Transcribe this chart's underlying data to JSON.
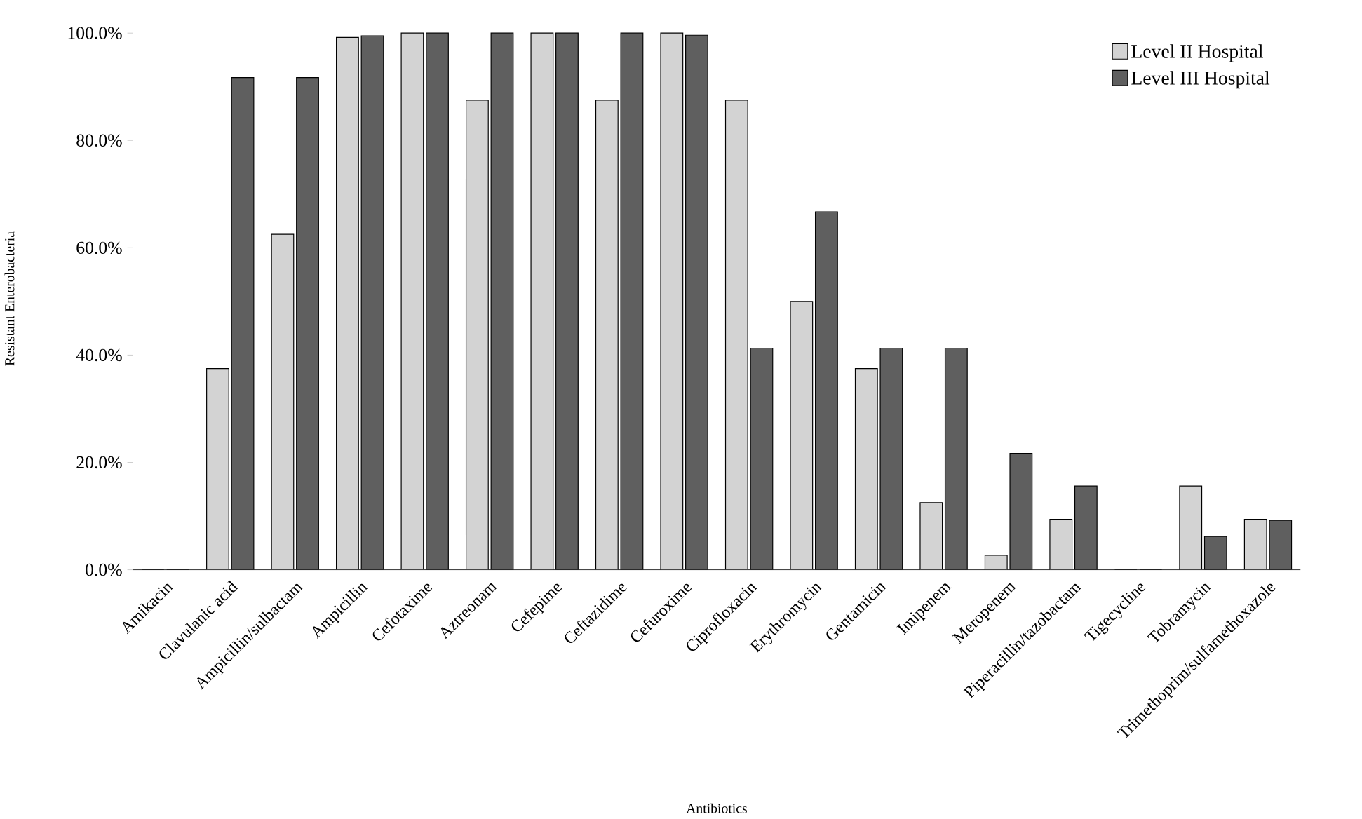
{
  "chart_data": {
    "type": "bar",
    "xlabel": "Antibiotics",
    "ylabel": "Resistant Enterobacteria",
    "categories": [
      "Amikacin",
      "Clavulanic acid",
      "Ampicillin/sulbactam",
      "Ampicillin",
      "Cefotaxime",
      "Aztreonam",
      "Cefepime",
      "Ceftazidime",
      "Cefuroxime",
      "Ciprofloxacin",
      "Erythromycin",
      "Gentamicin",
      "Imipenem",
      "Meropenem",
      "Piperacillin/tazobactam",
      "Tigecycline",
      "Tobramycin",
      "Trimethoprim/sulfamethoxazole"
    ],
    "series": [
      {
        "name": "Level II Hospital",
        "color": "#d3d3d3",
        "values": [
          0,
          37.5,
          62.5,
          99.2,
          100,
          87.5,
          100,
          87.5,
          100,
          87.5,
          50,
          37.5,
          12.5,
          2.7,
          9.4,
          0,
          15.6,
          9.4
        ]
      },
      {
        "name": "Level III Hospital",
        "color": "#5f5f5f",
        "values": [
          0,
          91.7,
          91.7,
          99.5,
          100,
          100,
          100,
          100,
          99.6,
          41.3,
          66.7,
          41.3,
          41.3,
          21.7,
          15.6,
          0,
          6.2,
          9.2
        ]
      }
    ],
    "ylim": [
      0,
      101
    ],
    "yticks": [
      {
        "value": 0,
        "label": "0.0%"
      },
      {
        "value": 20,
        "label": "20.0%"
      },
      {
        "value": 40,
        "label": "40.0%"
      },
      {
        "value": 60,
        "label": "60.0%"
      },
      {
        "value": 80,
        "label": "80.0%"
      },
      {
        "value": 100,
        "label": "100.0%"
      }
    ],
    "grid": false,
    "legend": "top right"
  }
}
